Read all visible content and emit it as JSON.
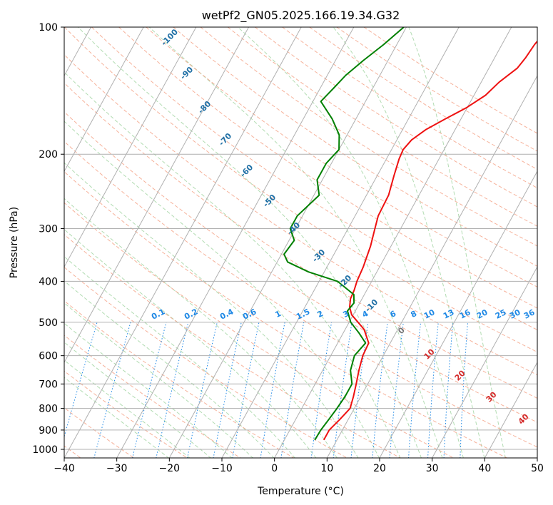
{
  "chart_data": {
    "type": "skew-t",
    "title": "wetPf2_GN05.2025.166.19.34.G32",
    "xlabel": "Temperature (°C)",
    "ylabel": "Pressure (hPa)",
    "xlim": [
      -40,
      50
    ],
    "ylim_hpa": [
      1050,
      100
    ],
    "y_scale": "log",
    "grid": true,
    "x_ticks": [
      -40,
      -30,
      -20,
      -10,
      0,
      10,
      20,
      30,
      40,
      50
    ],
    "x_tick_labels": [
      "−40",
      "−30",
      "−20",
      "−10",
      "0",
      "10",
      "20",
      "30",
      "40",
      "50"
    ],
    "y_ticks": [
      100,
      200,
      300,
      400,
      500,
      600,
      700,
      800,
      900,
      1000
    ],
    "y_tick_labels": [
      "100",
      "200",
      "300",
      "400",
      "500",
      "600",
      "700",
      "800",
      "900",
      "1000"
    ],
    "isotherm_labels": {
      "color": "#1f6fa5",
      "values": [
        -100,
        -90,
        -80,
        -70,
        -60,
        -50,
        -40,
        -30,
        -20,
        -10
      ]
    },
    "warm_isotherm_labels": [
      {
        "text": "0",
        "color": "#777777"
      },
      {
        "text": "10",
        "color": "#d42a2a"
      },
      {
        "text": "20",
        "color": "#d42a2a"
      },
      {
        "text": "30",
        "color": "#d42a2a"
      },
      {
        "text": "40",
        "color": "#d42a2a"
      }
    ],
    "mixing_ratio_labels": {
      "color": "#1e88e5",
      "values": [
        "0.1",
        "0.2",
        "0.4",
        "0.6",
        "1",
        "1.5",
        "2",
        "3",
        "4",
        "6",
        "8",
        "10",
        "13",
        "16",
        "20",
        "25",
        "30",
        "36"
      ]
    },
    "series": [
      {
        "role": "temperature",
        "color": "#ee1111",
        "points": [
          [
            950,
            7.5
          ],
          [
            900,
            7.5
          ],
          [
            850,
            8.4
          ],
          [
            800,
            9.2
          ],
          [
            750,
            8.6
          ],
          [
            700,
            7.8
          ],
          [
            650,
            6.9
          ],
          [
            600,
            6.1
          ],
          [
            560,
            5.9
          ],
          [
            520,
            3.6
          ],
          [
            500,
            1.7
          ],
          [
            480,
            -0.3
          ],
          [
            460,
            -1.5
          ],
          [
            440,
            -2.2
          ],
          [
            420,
            -2.4
          ],
          [
            400,
            -2.8
          ],
          [
            370,
            -3.1
          ],
          [
            330,
            -3.9
          ],
          [
            300,
            -4.9
          ],
          [
            280,
            -5.6
          ],
          [
            250,
            -5.8
          ],
          [
            225,
            -6.8
          ],
          [
            205,
            -7.6
          ],
          [
            195,
            -7.8
          ],
          [
            185,
            -7.2
          ],
          [
            175,
            -5.6
          ],
          [
            165,
            -3.0
          ],
          [
            155,
            -0.1
          ],
          [
            145,
            2.2
          ],
          [
            135,
            3.4
          ],
          [
            125,
            5.4
          ],
          [
            118,
            5.9
          ],
          [
            110,
            6.2
          ],
          [
            103,
            6.9
          ],
          [
            100,
            7.0
          ]
        ]
      },
      {
        "role": "dewpoint",
        "color": "#008000",
        "points": [
          [
            950,
            5.8
          ],
          [
            900,
            5.9
          ],
          [
            850,
            6.3
          ],
          [
            800,
            6.7
          ],
          [
            750,
            7.0
          ],
          [
            700,
            7.0
          ],
          [
            650,
            5.3
          ],
          [
            600,
            4.5
          ],
          [
            560,
            5.3
          ],
          [
            530,
            3.0
          ],
          [
            500,
            0.3
          ],
          [
            470,
            -1.5
          ],
          [
            450,
            -1.1
          ],
          [
            430,
            -2.0
          ],
          [
            400,
            -6.5
          ],
          [
            380,
            -13.0
          ],
          [
            360,
            -18.0
          ],
          [
            345,
            -19.5
          ],
          [
            320,
            -19.0
          ],
          [
            300,
            -21.0
          ],
          [
            280,
            -21.0
          ],
          [
            250,
            -19.0
          ],
          [
            230,
            -21.0
          ],
          [
            210,
            -21.0
          ],
          [
            195,
            -20.0
          ],
          [
            180,
            -21.5
          ],
          [
            165,
            -24.5
          ],
          [
            150,
            -28.5
          ],
          [
            140,
            -27.5
          ],
          [
            130,
            -26.5
          ],
          [
            120,
            -24.7
          ],
          [
            110,
            -22.5
          ],
          [
            100,
            -20.5
          ]
        ]
      }
    ]
  }
}
